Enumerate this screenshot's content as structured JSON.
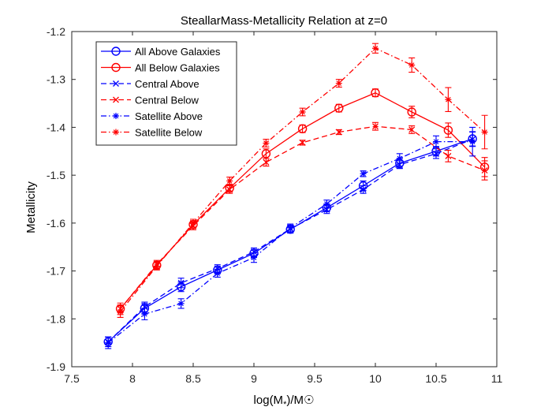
{
  "chart_data": {
    "type": "line",
    "title": "SteallarMass-Metallicity Relation at z=0",
    "xlabel_prefix": "log(M",
    "xlabel_sub": "*",
    "xlabel_suffix": ")/M☉",
    "ylabel": "Metallicity",
    "xlim": [
      7.5,
      11
    ],
    "ylim": [
      -1.9,
      -1.2
    ],
    "xticks": [
      7.5,
      8,
      8.5,
      9,
      9.5,
      10,
      10.5,
      11
    ],
    "xtick_labels": [
      "7.5",
      "8",
      "8.5",
      "9",
      "9.5",
      "10",
      "10.5",
      "11"
    ],
    "yticks": [
      -1.9,
      -1.8,
      -1.7,
      -1.6,
      -1.5,
      -1.4,
      -1.3,
      -1.2
    ],
    "ytick_labels": [
      "-1.9",
      "-1.8",
      "-1.7",
      "-1.6",
      "-1.5",
      "-1.4",
      "-1.3",
      "-1.2"
    ],
    "grid": false,
    "legend_position": "top-left",
    "series": [
      {
        "name": "All Above Galaxies",
        "color": "#0000ff",
        "line_style": "solid",
        "marker": "circle",
        "x": [
          7.8,
          8.1,
          8.4,
          8.7,
          9.0,
          9.3,
          9.6,
          9.9,
          10.2,
          10.5,
          10.8
        ],
        "y": [
          -1.848,
          -1.778,
          -1.733,
          -1.698,
          -1.663,
          -1.613,
          -1.568,
          -1.522,
          -1.475,
          -1.45,
          -1.424
        ],
        "err": [
          0.01,
          0.01,
          0.01,
          0.008,
          0.008,
          0.008,
          0.008,
          0.01,
          0.01,
          0.01,
          0.015
        ]
      },
      {
        "name": "All Below Galaxies",
        "color": "#ff0000",
        "line_style": "solid",
        "marker": "circle",
        "x": [
          7.9,
          8.2,
          8.5,
          8.8,
          9.1,
          9.4,
          9.7,
          10.0,
          10.3,
          10.6,
          10.9
        ],
        "y": [
          -1.779,
          -1.688,
          -1.603,
          -1.527,
          -1.455,
          -1.403,
          -1.36,
          -1.328,
          -1.368,
          -1.406,
          -1.483
        ],
        "err": [
          0.008,
          0.008,
          0.008,
          0.008,
          0.01,
          0.008,
          0.008,
          0.008,
          0.012,
          0.015,
          0.02
        ]
      },
      {
        "name": "Central Above",
        "color": "#0000ff",
        "line_style": "dashed",
        "marker": "x",
        "x": [
          7.8,
          8.1,
          8.4,
          8.7,
          9.0,
          9.3,
          9.6,
          9.9,
          10.2,
          10.5,
          10.8
        ],
        "y": [
          -1.848,
          -1.775,
          -1.725,
          -1.695,
          -1.66,
          -1.612,
          -1.572,
          -1.53,
          -1.478,
          -1.455,
          -1.425
        ],
        "err": [
          0.01,
          0.01,
          0.01,
          0.008,
          0.008,
          0.008,
          0.008,
          0.008,
          0.008,
          0.01,
          0.015
        ]
      },
      {
        "name": "Central Below",
        "color": "#ff0000",
        "line_style": "dashed",
        "marker": "x",
        "x": [
          7.9,
          8.2,
          8.5,
          8.8,
          9.1,
          9.4,
          9.7,
          10.0,
          10.3,
          10.6,
          10.9
        ],
        "y": [
          -1.779,
          -1.686,
          -1.606,
          -1.53,
          -1.473,
          -1.432,
          -1.41,
          -1.398,
          -1.405,
          -1.46,
          -1.49
        ],
        "err": [
          0.012,
          0.008,
          0.008,
          0.008,
          0.008,
          0.005,
          0.005,
          0.008,
          0.008,
          0.012,
          0.02
        ]
      },
      {
        "name": "Satellite Above",
        "color": "#0000ff",
        "line_style": "dashdot",
        "marker": "star",
        "x": [
          7.8,
          8.1,
          8.4,
          8.7,
          9.0,
          9.3,
          9.6,
          9.9,
          10.2,
          10.5,
          10.8
        ],
        "y": [
          -1.85,
          -1.79,
          -1.768,
          -1.705,
          -1.672,
          -1.61,
          -1.56,
          -1.497,
          -1.465,
          -1.43,
          -1.43
        ],
        "err": [
          0.012,
          0.012,
          0.01,
          0.008,
          0.01,
          0.008,
          0.008,
          0.006,
          0.01,
          0.012,
          0.03
        ]
      },
      {
        "name": "Satellite Below",
        "color": "#ff0000",
        "line_style": "dashdot",
        "marker": "star",
        "x": [
          7.9,
          8.2,
          8.5,
          8.8,
          9.1,
          9.4,
          9.7,
          10.0,
          10.3,
          10.6,
          10.9
        ],
        "y": [
          -1.785,
          -1.69,
          -1.6,
          -1.512,
          -1.433,
          -1.368,
          -1.308,
          -1.235,
          -1.27,
          -1.342,
          -1.41
        ],
        "err": [
          0.012,
          0.008,
          0.008,
          0.008,
          0.008,
          0.008,
          0.008,
          0.01,
          0.015,
          0.025,
          0.035
        ]
      }
    ]
  }
}
